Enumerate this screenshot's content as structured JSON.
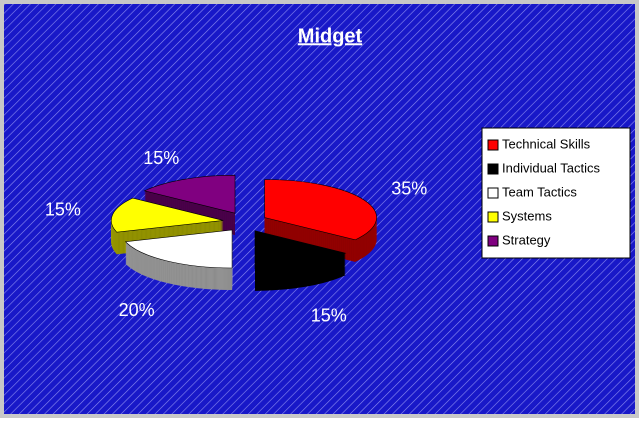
{
  "chart_data": {
    "type": "pie",
    "title": "Midget",
    "categories": [
      "Technical Skills",
      "Individual Tactics",
      "Team Tactics",
      "Systems",
      "Strategy"
    ],
    "values": [
      35,
      15,
      20,
      15,
      15
    ],
    "value_labels": [
      "35%",
      "15%",
      "20%",
      "15%",
      "15%"
    ],
    "colors": [
      "#ff0000",
      "#000000",
      "#ffffff",
      "#ffff00",
      "#800080"
    ],
    "legend": "right"
  }
}
